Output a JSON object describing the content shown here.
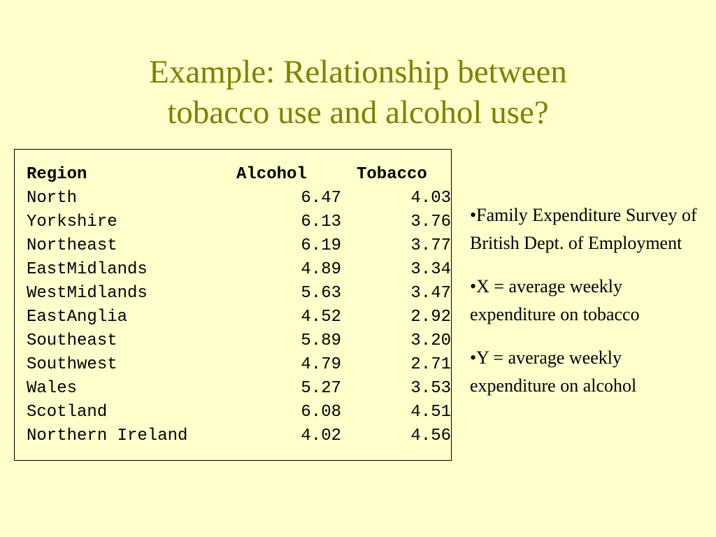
{
  "title": {
    "line1": "Example: Relationship between",
    "line2": "tobacco use and alcohol use?"
  },
  "table": {
    "headers": [
      "Region",
      "Alcohol",
      "Tobacco"
    ],
    "rows": [
      [
        "North",
        "6.47",
        "4.03"
      ],
      [
        "Yorkshire",
        "6.13",
        "3.76"
      ],
      [
        "Northeast",
        "6.19",
        "3.77"
      ],
      [
        "EastMidlands",
        "4.89",
        "3.34"
      ],
      [
        "WestMidlands",
        "5.63",
        "3.47"
      ],
      [
        "EastAnglia",
        "4.52",
        "2.92"
      ],
      [
        "Southeast",
        "5.89",
        "3.20"
      ],
      [
        "Southwest",
        "4.79",
        "2.71"
      ],
      [
        "Wales",
        "5.27",
        "3.53"
      ],
      [
        "Scotland",
        "6.08",
        "4.51"
      ],
      [
        "Northern Ireland",
        "4.02",
        "4.56"
      ]
    ]
  },
  "notes": [
    "•Family Expenditure Survey of British Dept. of Employment",
    "•X = average weekly expenditure on tobacco",
    "•Y = average weekly expenditure on alcohol"
  ],
  "colors": {
    "background": "#ffffcc",
    "title": "#808000",
    "text": "#000000"
  }
}
